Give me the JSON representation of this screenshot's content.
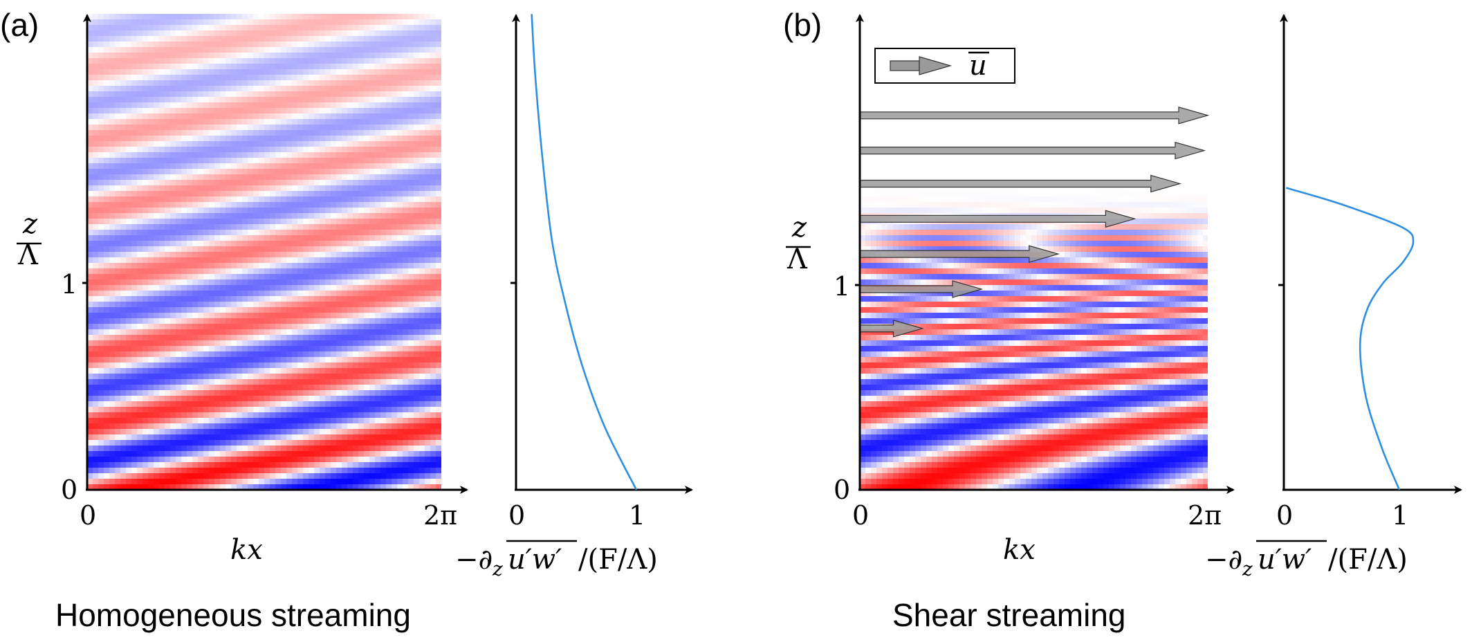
{
  "panel_a": {
    "tag": "(a)",
    "caption": "Homogeneous streaming",
    "ylabel_num": "z",
    "ylabel_den": "Λ",
    "ytick_0": "0",
    "ytick_1": "1",
    "xtick_0": "0",
    "xtick_2pi": "2π",
    "xlabel": "kx",
    "profile_xtick_0": "0",
    "profile_xtick_1": "1",
    "profile_xlabel_pre": "−∂",
    "profile_xlabel_sub": "z",
    "profile_xlabel_over": "u′w′",
    "profile_xlabel_post": "/(F/Λ)"
  },
  "panel_b": {
    "tag": "(b)",
    "caption": "Shear streaming",
    "legend_label": "u",
    "ylabel_num": "z",
    "ylabel_den": "Λ",
    "ytick_0": "0",
    "ytick_1": "1",
    "xtick_0": "0",
    "xtick_2pi": "2π",
    "xlabel": "kx",
    "profile_xtick_0": "0",
    "profile_xtick_1": "1",
    "profile_xlabel_pre": "−∂",
    "profile_xlabel_sub": "z",
    "profile_xlabel_over": "u′w′",
    "profile_xlabel_post": "/(F/Λ)"
  },
  "colors": {
    "red": "#ff0000",
    "blue": "#0000ff",
    "curve": "#2e8fe0",
    "arrow": "#9a9a9a"
  },
  "chart_data": [
    {
      "type": "heatmap",
      "panel": "a",
      "x_range": [
        0,
        6.2832
      ],
      "y_range": [
        0,
        2.3
      ],
      "colormap": "blue-white-red",
      "pattern": "tilted waves, phase constant along lines rising to the right, amplitude decaying with z"
    },
    {
      "type": "line",
      "panel": "a",
      "x_range": [
        0,
        1.4
      ],
      "y_range": [
        0,
        2.3
      ],
      "x": [
        1.0,
        0.74,
        0.55,
        0.41,
        0.3,
        0.22,
        0.16,
        0.13
      ],
      "y": [
        0,
        0.3,
        0.6,
        0.9,
        1.2,
        1.6,
        2.0,
        2.3
      ]
    },
    {
      "type": "heatmap",
      "panel": "b",
      "x_range": [
        0,
        6.2832
      ],
      "y_range": [
        0,
        2.3
      ],
      "colormap": "blue-white-red",
      "pattern": "waves tilting to horizontal with height, absorbed near z ≈ 1.3"
    },
    {
      "type": "bar",
      "panel": "b",
      "orientation": "horizontal",
      "series_label": "u",
      "z": [
        0.78,
        0.97,
        1.14,
        1.31,
        1.48,
        1.64,
        1.81
      ],
      "u_end_fraction_of_2pi": [
        0.18,
        0.35,
        0.57,
        0.79,
        0.92,
        0.99,
        1.0
      ]
    },
    {
      "type": "line",
      "panel": "b",
      "x_range": [
        0,
        1.4
      ],
      "y_range": [
        0,
        2.3
      ],
      "x": [
        1.0,
        0.85,
        0.71,
        0.66,
        0.72,
        0.86,
        1.03,
        1.12,
        1.02,
        0.5,
        0.02
      ],
      "y": [
        0,
        0.2,
        0.45,
        0.7,
        0.87,
        1.0,
        1.1,
        1.2,
        1.27,
        1.38,
        1.46
      ]
    }
  ]
}
